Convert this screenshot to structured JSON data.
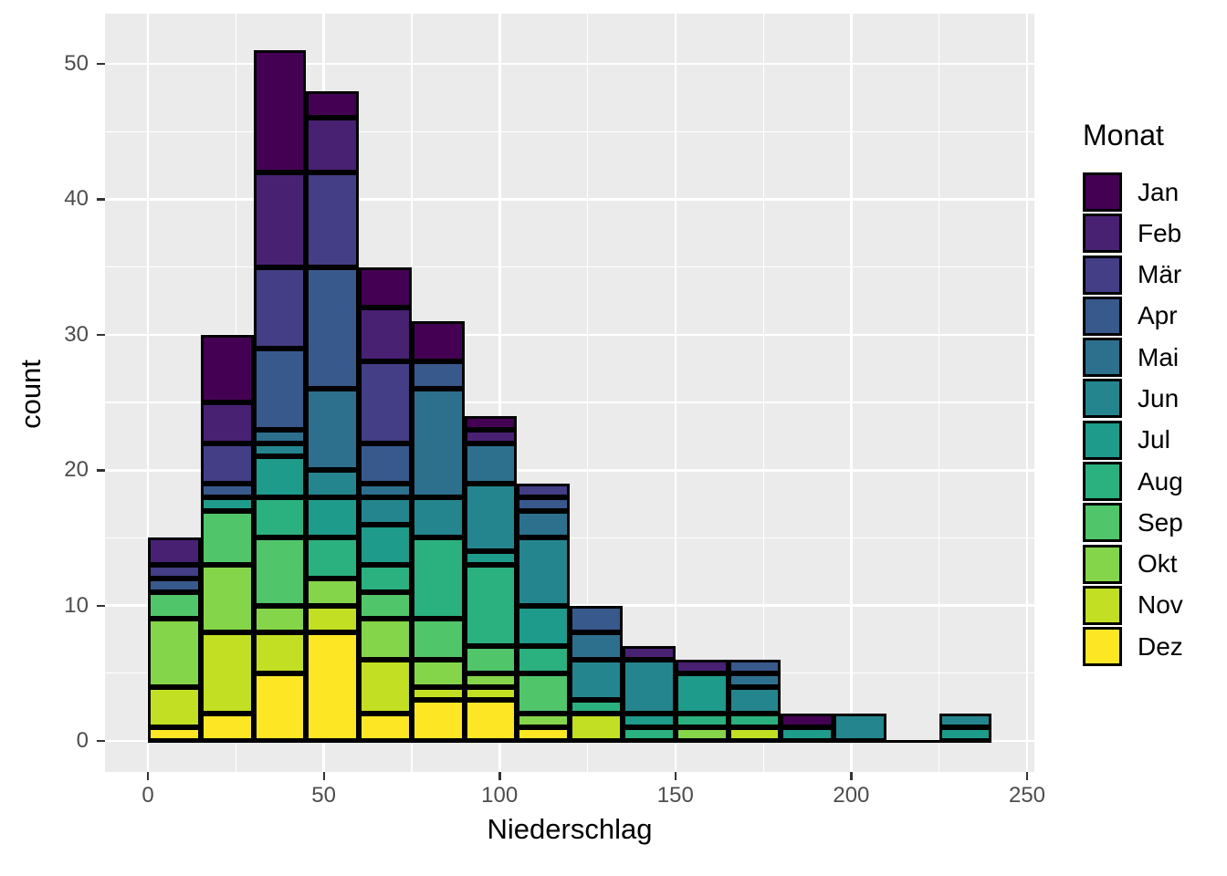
{
  "chart_data": {
    "type": "bar",
    "subtype": "stacked-histogram",
    "xlabel": "Niederschlag",
    "ylabel": "count",
    "legend_title": "Monat",
    "x_ticks": [
      0,
      50,
      100,
      150,
      200,
      250
    ],
    "y_ticks": [
      0,
      10,
      20,
      30,
      40,
      50
    ],
    "x_minor_ticks": [
      25,
      75,
      125,
      175,
      225
    ],
    "y_minor_ticks": [
      5,
      15,
      25,
      35,
      45
    ],
    "xlim": [
      -12.5,
      252.5
    ],
    "ylim": [
      -2.3,
      53.6
    ],
    "bin_width": 15,
    "grid": "on",
    "legend_position": "right",
    "panel_background": "#EBEBEB",
    "gridline_color": "#FFFFFF",
    "bar_outline_color": "#000000",
    "months": [
      {
        "name": "Jan",
        "color": "#440154"
      },
      {
        "name": "Feb",
        "color": "#482173"
      },
      {
        "name": "Mär",
        "color": "#433E85"
      },
      {
        "name": "Apr",
        "color": "#38598C"
      },
      {
        "name": "Mai",
        "color": "#2D708E"
      },
      {
        "name": "Jun",
        "color": "#25858E"
      },
      {
        "name": "Jul",
        "color": "#1E9B8A"
      },
      {
        "name": "Aug",
        "color": "#2BB07F"
      },
      {
        "name": "Sep",
        "color": "#51C56A"
      },
      {
        "name": "Okt",
        "color": "#85D54A"
      },
      {
        "name": "Nov",
        "color": "#C2DF23"
      },
      {
        "name": "Dez",
        "color": "#FDE725"
      }
    ],
    "bins": [
      {
        "x0": 0,
        "total": 15,
        "values": [
          0,
          2,
          1,
          1,
          0,
          0,
          0,
          0,
          2,
          5,
          3,
          1
        ]
      },
      {
        "x0": 15,
        "total": 30,
        "values": [
          5,
          3,
          3,
          1,
          0,
          0,
          1,
          0,
          4,
          5,
          6,
          2
        ]
      },
      {
        "x0": 30,
        "total": 51,
        "values": [
          9,
          7,
          6,
          6,
          1,
          1,
          3,
          3,
          5,
          2,
          3,
          5
        ]
      },
      {
        "x0": 45,
        "total": 48,
        "values": [
          2,
          4,
          7,
          9,
          6,
          2,
          3,
          3,
          0,
          2,
          2,
          8
        ]
      },
      {
        "x0": 60,
        "total": 35,
        "values": [
          3,
          4,
          6,
          3,
          1,
          2,
          3,
          2,
          2,
          3,
          4,
          2
        ]
      },
      {
        "x0": 75,
        "total": 31,
        "values": [
          3,
          0,
          0,
          2,
          8,
          3,
          0,
          6,
          3,
          2,
          1,
          3
        ]
      },
      {
        "x0": 90,
        "total": 24,
        "values": [
          1,
          1,
          0,
          0,
          3,
          5,
          1,
          6,
          2,
          1,
          1,
          3
        ]
      },
      {
        "x0": 105,
        "total": 19,
        "values": [
          0,
          0,
          1,
          1,
          2,
          5,
          3,
          2,
          3,
          1,
          0,
          1
        ]
      },
      {
        "x0": 120,
        "total": 10,
        "values": [
          0,
          0,
          0,
          2,
          2,
          3,
          0,
          1,
          0,
          0,
          2,
          0
        ]
      },
      {
        "x0": 135,
        "total": 7,
        "values": [
          0,
          1,
          0,
          0,
          0,
          4,
          1,
          1,
          0,
          0,
          0,
          0
        ]
      },
      {
        "x0": 150,
        "total": 6,
        "values": [
          0,
          1,
          0,
          0,
          0,
          0,
          3,
          1,
          0,
          1,
          0,
          0
        ]
      },
      {
        "x0": 165,
        "total": 6,
        "values": [
          0,
          0,
          0,
          1,
          1,
          2,
          0,
          1,
          0,
          0,
          1,
          0
        ]
      },
      {
        "x0": 180,
        "total": 2,
        "values": [
          1,
          0,
          0,
          0,
          0,
          0,
          1,
          0,
          0,
          0,
          0,
          0
        ]
      },
      {
        "x0": 195,
        "total": 2,
        "values": [
          0,
          0,
          0,
          0,
          0,
          2,
          0,
          0,
          0,
          0,
          0,
          0
        ]
      },
      {
        "x0": 210,
        "total": 0,
        "values": [
          0,
          0,
          0,
          0,
          0,
          0,
          0,
          0,
          0,
          0,
          0,
          0
        ]
      },
      {
        "x0": 225,
        "total": 2,
        "values": [
          0,
          0,
          0,
          0,
          0,
          1,
          1,
          0,
          0,
          0,
          0,
          0
        ]
      }
    ]
  }
}
